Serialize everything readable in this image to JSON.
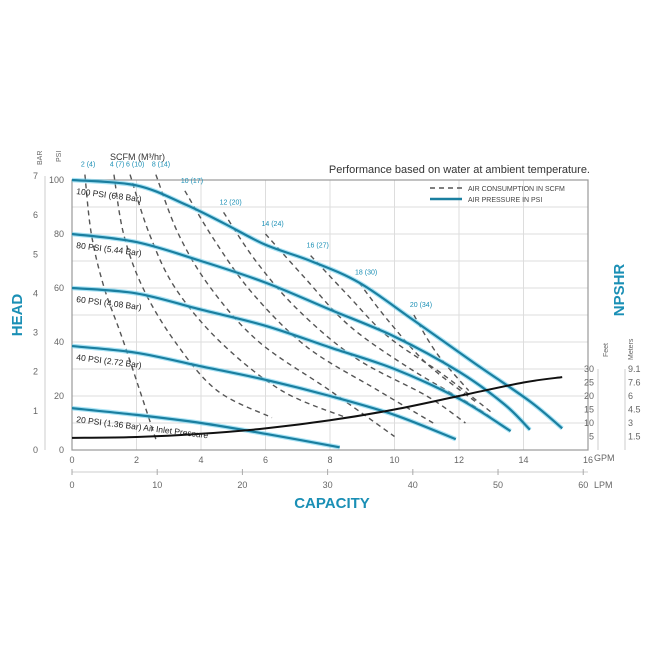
{
  "chart_data": {
    "type": "line",
    "note": "Performance based on water at ambient temperature.",
    "xlabel": "CAPACITY",
    "ylabel_left": "HEAD",
    "ylabel_right": "NPSHR",
    "x_unit_primary": "GPM",
    "x_unit_secondary": "LPM",
    "y_unit_psi": "PSI",
    "y_unit_bar": "BAR",
    "npshr_units": [
      "Feet",
      "Meters"
    ],
    "scfm_header": "SCFM (M³/hr)",
    "xlim_gpm": [
      0,
      16
    ],
    "ylim_psi": [
      0,
      100
    ],
    "grid": true,
    "x_ticks_gpm": [
      "0",
      "2",
      "4",
      "6",
      "8",
      "10",
      "12",
      "14",
      "16"
    ],
    "x_ticks_lpm": [
      "0",
      "10",
      "20",
      "30",
      "40",
      "50",
      "60"
    ],
    "y_ticks_psi": [
      "0",
      "20",
      "40",
      "60",
      "80",
      "100"
    ],
    "y_ticks_bar": [
      "0",
      "1",
      "2",
      "3",
      "4",
      "5",
      "6",
      "7"
    ],
    "npshr_ticks_feet": [
      "5",
      "10",
      "15",
      "20",
      "25",
      "30"
    ],
    "npshr_ticks_meters": [
      "1.5",
      "3",
      "4.5",
      "6",
      "7.6",
      "9.1"
    ],
    "legend": {
      "placement": "top-right",
      "items": [
        "AIR CONSUMPTION IN SCFM",
        "AIR PRESSURE IN PSI"
      ]
    },
    "colors": {
      "pressure": "#1a7fa0",
      "pressure_glow": "#6fd0ee",
      "npshr": "#111111",
      "scfm": "#555555",
      "label_blue": "#1a8fb5"
    },
    "pressure_series": [
      {
        "name": "100 PSI (6.8 Bar)",
        "points": [
          [
            0,
            100
          ],
          [
            2,
            98
          ],
          [
            3.5,
            91
          ],
          [
            4.7,
            84
          ],
          [
            6,
            76
          ],
          [
            7.4,
            70
          ],
          [
            8.9,
            62
          ],
          [
            10.6,
            48
          ],
          [
            12.5,
            32
          ],
          [
            14.2,
            18
          ],
          [
            15.2,
            8
          ]
        ]
      },
      {
        "name": "80 PSI (5.44 Bar)",
        "points": [
          [
            0,
            80
          ],
          [
            2,
            77
          ],
          [
            4,
            70
          ],
          [
            6,
            62
          ],
          [
            8,
            52
          ],
          [
            10,
            42
          ],
          [
            12,
            29
          ],
          [
            13.4,
            17
          ],
          [
            14.2,
            7.5
          ]
        ]
      },
      {
        "name": "60 PSI (4.08 Bar)",
        "points": [
          [
            0,
            60
          ],
          [
            2,
            58
          ],
          [
            4,
            52
          ],
          [
            6,
            46
          ],
          [
            8,
            38
          ],
          [
            10,
            30
          ],
          [
            12,
            19
          ],
          [
            13.6,
            7
          ]
        ]
      },
      {
        "name": "40 PSI (2.72 Bar)",
        "points": [
          [
            0,
            38.5
          ],
          [
            2,
            36
          ],
          [
            4,
            31
          ],
          [
            6,
            26
          ],
          [
            8,
            20
          ],
          [
            10,
            13
          ],
          [
            11.9,
            4
          ]
        ]
      },
      {
        "name": "20 PSI (1.36 Bar) Air Inlet Pressure",
        "points": [
          [
            0,
            15.5
          ],
          [
            2,
            13
          ],
          [
            4,
            10
          ],
          [
            6,
            6
          ],
          [
            8.3,
            1
          ]
        ]
      }
    ],
    "npshr_series": {
      "unit": "Feet",
      "points": [
        [
          0,
          4.5
        ],
        [
          2,
          4.8
        ],
        [
          4,
          6
        ],
        [
          6,
          8
        ],
        [
          8,
          11
        ],
        [
          10,
          15
        ],
        [
          12,
          20
        ],
        [
          14,
          25
        ],
        [
          15.2,
          27
        ]
      ]
    },
    "scfm_series": [
      {
        "name": "2 (4)",
        "points": [
          [
            0.4,
            102
          ],
          [
            0.6,
            80
          ],
          [
            1.0,
            60
          ],
          [
            1.6,
            40
          ],
          [
            2.6,
            4
          ]
        ]
      },
      {
        "name": "4 (7)",
        "points": [
          [
            1.3,
            102
          ],
          [
            1.6,
            80
          ],
          [
            2.2,
            60
          ],
          [
            3.2,
            40
          ],
          [
            4.5,
            22
          ],
          [
            6.2,
            12
          ]
        ]
      },
      {
        "name": "6 (10)",
        "points": [
          [
            1.8,
            102
          ],
          [
            2.4,
            80
          ],
          [
            3.2,
            60
          ],
          [
            4.6,
            40
          ],
          [
            6.5,
            22
          ],
          [
            8.5,
            12
          ]
        ]
      },
      {
        "name": "8 (14)",
        "points": [
          [
            2.6,
            102
          ],
          [
            3.3,
            80
          ],
          [
            4.3,
            60
          ],
          [
            5.8,
            40
          ],
          [
            8,
            22
          ],
          [
            10,
            5
          ]
        ]
      },
      {
        "name": "10 (17)",
        "points": [
          [
            3.5,
            96
          ],
          [
            4.4,
            78
          ],
          [
            5.6,
            58
          ],
          [
            7.3,
            38
          ],
          [
            9.5,
            22
          ],
          [
            11.2,
            10
          ]
        ]
      },
      {
        "name": "12 (20)",
        "points": [
          [
            4.7,
            88
          ],
          [
            5.7,
            70
          ],
          [
            7,
            52
          ],
          [
            8.8,
            34
          ],
          [
            11,
            20
          ],
          [
            12.2,
            10
          ]
        ]
      },
      {
        "name": "14 (24)",
        "points": [
          [
            6,
            80
          ],
          [
            7.2,
            64
          ],
          [
            8.6,
            46
          ],
          [
            10.5,
            30
          ],
          [
            12.5,
            16
          ],
          [
            13.2,
            10
          ]
        ]
      },
      {
        "name": "16 (27)",
        "points": [
          [
            7.4,
            72
          ],
          [
            8.5,
            58
          ],
          [
            9.8,
            42
          ],
          [
            11.5,
            28
          ],
          [
            13,
            14
          ]
        ]
      },
      {
        "name": "18 (30)",
        "points": [
          [
            8.9,
            62
          ],
          [
            9.8,
            48
          ],
          [
            11,
            32
          ],
          [
            12.5,
            18
          ]
        ]
      },
      {
        "name": "20 (34)",
        "points": [
          [
            10.6,
            50
          ],
          [
            11.3,
            36
          ],
          [
            12.3,
            22
          ]
        ]
      }
    ]
  }
}
